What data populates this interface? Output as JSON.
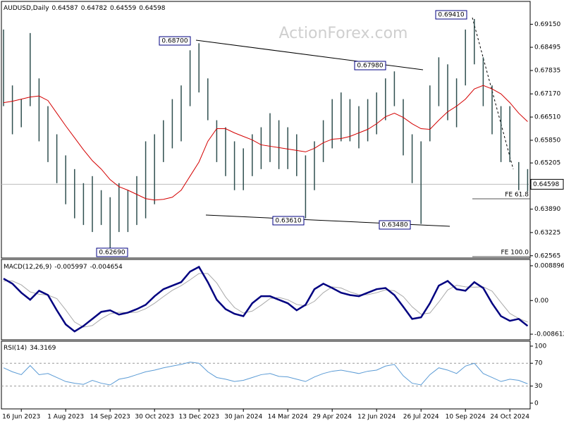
{
  "chart_data": [
    {
      "type": "ohlc",
      "title": "AUDUSD,Daily",
      "header_values": [
        0.64587,
        0.64782,
        0.64559,
        0.64598
      ],
      "watermark": "ActionForex.com",
      "categories": [
        null,
        null,
        "16 Jun 2023",
        null,
        null,
        null,
        null,
        "1 Aug 2023",
        null,
        null,
        null,
        null,
        "14 Sep 2023",
        null,
        null,
        null,
        null,
        "30 Oct 2023",
        null,
        null,
        null,
        null,
        "13 Dec 2023",
        null,
        null,
        null,
        null,
        "30 Jan 2024",
        null,
        null,
        null,
        null,
        "14 Mar 2024",
        null,
        null,
        null,
        null,
        "29 Apr 2024",
        null,
        null,
        null,
        null,
        "12 Jun 2024",
        null,
        null,
        null,
        null,
        "26 Jul 2024",
        null,
        null,
        null,
        null,
        "10 Sep 2024",
        null,
        null,
        null,
        null,
        "24 Oct 2024",
        null,
        null
      ],
      "high": [
        0.69,
        0.6741,
        0.6702,
        0.689,
        0.6761,
        0.6682,
        0.6602,
        0.6542,
        0.6503,
        0.6463,
        0.6483,
        0.6443,
        0.6423,
        0.6463,
        0.6443,
        0.6483,
        0.6582,
        0.6602,
        0.6642,
        0.6702,
        0.6741,
        0.6841,
        0.6861,
        0.6761,
        0.6642,
        0.6622,
        0.6582,
        0.6562,
        0.6602,
        0.6622,
        0.6662,
        0.6642,
        0.6622,
        0.6602,
        0.6542,
        0.6582,
        0.6642,
        0.6702,
        0.6721,
        0.6702,
        0.6682,
        0.6702,
        0.6721,
        0.6761,
        0.6781,
        0.6702,
        0.6602,
        0.6582,
        0.6741,
        0.6821,
        0.6801,
        0.6761,
        0.69,
        0.693,
        0.6821,
        0.6741,
        0.6682,
        0.6682,
        0.6523,
        0.6503
      ],
      "low": [
        0.6682,
        0.6602,
        0.6622,
        0.6682,
        0.6582,
        0.6523,
        0.6463,
        0.6403,
        0.6363,
        0.6344,
        0.6324,
        0.6344,
        0.6274,
        0.6324,
        0.6324,
        0.6344,
        0.6363,
        0.6403,
        0.6523,
        0.6562,
        0.6582,
        0.6682,
        0.6721,
        0.6642,
        0.6523,
        0.6483,
        0.6443,
        0.6443,
        0.6483,
        0.6503,
        0.6523,
        0.6503,
        0.6503,
        0.6483,
        0.6363,
        0.6443,
        0.6523,
        0.6562,
        0.6582,
        0.6582,
        0.6562,
        0.6582,
        0.6602,
        0.6642,
        0.6682,
        0.6542,
        0.6463,
        0.6347,
        0.6582,
        0.6682,
        0.6642,
        0.6622,
        0.6741,
        0.6801,
        0.6682,
        0.6602,
        0.6523,
        0.6523,
        0.6443,
        0.6439
      ],
      "color": "#2f4f4f",
      "ma": {
        "color": "#d40000",
        "values": [
          0.6692,
          0.6696,
          0.6702,
          0.6708,
          0.6711,
          0.6698,
          0.6662,
          0.6626,
          0.6592,
          0.6558,
          0.6527,
          0.6503,
          0.6473,
          0.6453,
          0.6443,
          0.6431,
          0.6419,
          0.6415,
          0.6417,
          0.6423,
          0.6443,
          0.6483,
          0.6523,
          0.6582,
          0.6618,
          0.6618,
          0.6606,
          0.6596,
          0.6586,
          0.6572,
          0.6568,
          0.6564,
          0.656,
          0.6556,
          0.6552,
          0.6562,
          0.6578,
          0.6588,
          0.659,
          0.6596,
          0.6606,
          0.6616,
          0.6632,
          0.6652,
          0.6662,
          0.665,
          0.6632,
          0.6618,
          0.6616,
          0.6642,
          0.6666,
          0.6682,
          0.6702,
          0.6731,
          0.6741,
          0.6731,
          0.6717,
          0.6692,
          0.6662,
          0.6638
        ]
      },
      "current_price": 0.64598,
      "annotations": [
        "0.68700",
        "0.67980",
        "0.69410",
        "0.63610",
        "0.63480",
        "0.62690"
      ],
      "fe_levels": [
        "FE 61.8",
        "FE 100.0"
      ],
      "ylim": [
        0.625,
        0.698
      ],
      "yticks": [
        {
          "value": 0.6915,
          "label": "0.69150"
        },
        0.68495,
        0.67835,
        {
          "value": 0.6717,
          "label": "0.67170"
        },
        {
          "value": 0.6651,
          "label": "0.66510"
        },
        {
          "value": 0.6585,
          "label": "0.65850"
        },
        0.65205,
        {
          "value": 0.6389,
          "label": "0.63890"
        },
        0.63225,
        0.62565
      ]
    },
    {
      "type": "line",
      "title": "MACD(12,26,9)",
      "header_values": [
        -0.005997,
        -0.004654
      ],
      "series": [
        {
          "color": "#000080",
          "values": [
            0.0056,
            0.0043,
            0.002,
            0.0002,
            0.0025,
            0.0014,
            -0.0025,
            -0.0061,
            -0.0079,
            -0.0065,
            -0.0047,
            -0.0029,
            -0.0025,
            -0.0036,
            -0.0031,
            -0.0022,
            -0.0011,
            0.0011,
            0.0029,
            0.0038,
            0.0047,
            0.0074,
            0.0086,
            0.0047,
            0.0002,
            -0.0022,
            -0.0034,
            -0.004,
            -0.0007,
            0.0011,
            0.0011,
            0.0002,
            -0.0007,
            -0.0025,
            -0.0011,
            0.0029,
            0.0043,
            0.0032,
            0.002,
            0.0014,
            0.0011,
            0.002,
            0.0029,
            0.0032,
            0.0014,
            -0.0016,
            -0.0047,
            -0.0043,
            -0.0007,
            0.0038,
            0.005,
            0.0029,
            0.0025,
            0.0047,
            0.0032,
            -0.0007,
            -0.004,
            -0.0052,
            -0.0047,
            -0.0065
          ]
        },
        {
          "color": "#a9a9a9",
          "values": [
            0.005,
            0.005,
            0.004,
            0.0022,
            0.0016,
            0.0014,
            0.0005,
            -0.0024,
            -0.0055,
            -0.0068,
            -0.0064,
            -0.0047,
            -0.0034,
            -0.003,
            -0.0031,
            -0.003,
            -0.0021,
            -0.0007,
            0.001,
            0.0026,
            0.0038,
            0.0053,
            0.0069,
            0.0069,
            0.0045,
            0.0009,
            -0.0018,
            -0.0032,
            -0.0027,
            -0.0012,
            0.0005,
            0.0008,
            0.0002,
            -0.001,
            -0.0014,
            -0.0002,
            0.002,
            0.0035,
            0.0032,
            0.0022,
            0.0015,
            0.0015,
            0.002,
            0.0027,
            0.0025,
            0.001,
            -0.0016,
            -0.0035,
            -0.0032,
            -0.0004,
            0.0027,
            0.0039,
            0.0035,
            0.0034,
            0.0035,
            0.0024,
            -0.0005,
            -0.0033,
            -0.0046,
            -0.0055
          ]
        }
      ],
      "ylim": [
        -0.01005,
        0.01051
      ],
      "yticks": [
        0.008896,
        {
          "value": 0,
          "label": "0.00"
        },
        -0.008612
      ]
    },
    {
      "type": "line",
      "title": "RSI(14)",
      "header_values": [
        34.3169
      ],
      "series": [
        {
          "color": "#5b9bd5",
          "values": [
            62,
            55,
            50,
            66,
            50,
            52,
            45,
            38,
            35,
            33,
            40,
            35,
            32,
            42,
            45,
            50,
            55,
            58,
            62,
            65,
            68,
            72,
            70,
            55,
            45,
            42,
            38,
            40,
            45,
            50,
            52,
            47,
            46,
            42,
            38,
            46,
            52,
            56,
            58,
            55,
            52,
            56,
            58,
            65,
            68,
            48,
            35,
            32,
            50,
            62,
            58,
            52,
            65,
            70,
            52,
            45,
            38,
            42,
            40,
            34
          ]
        }
      ],
      "levels": [
        70,
        30
      ],
      "ylim": [
        -10,
        108.6
      ],
      "yticks": [
        100,
        70,
        30,
        0
      ]
    }
  ]
}
